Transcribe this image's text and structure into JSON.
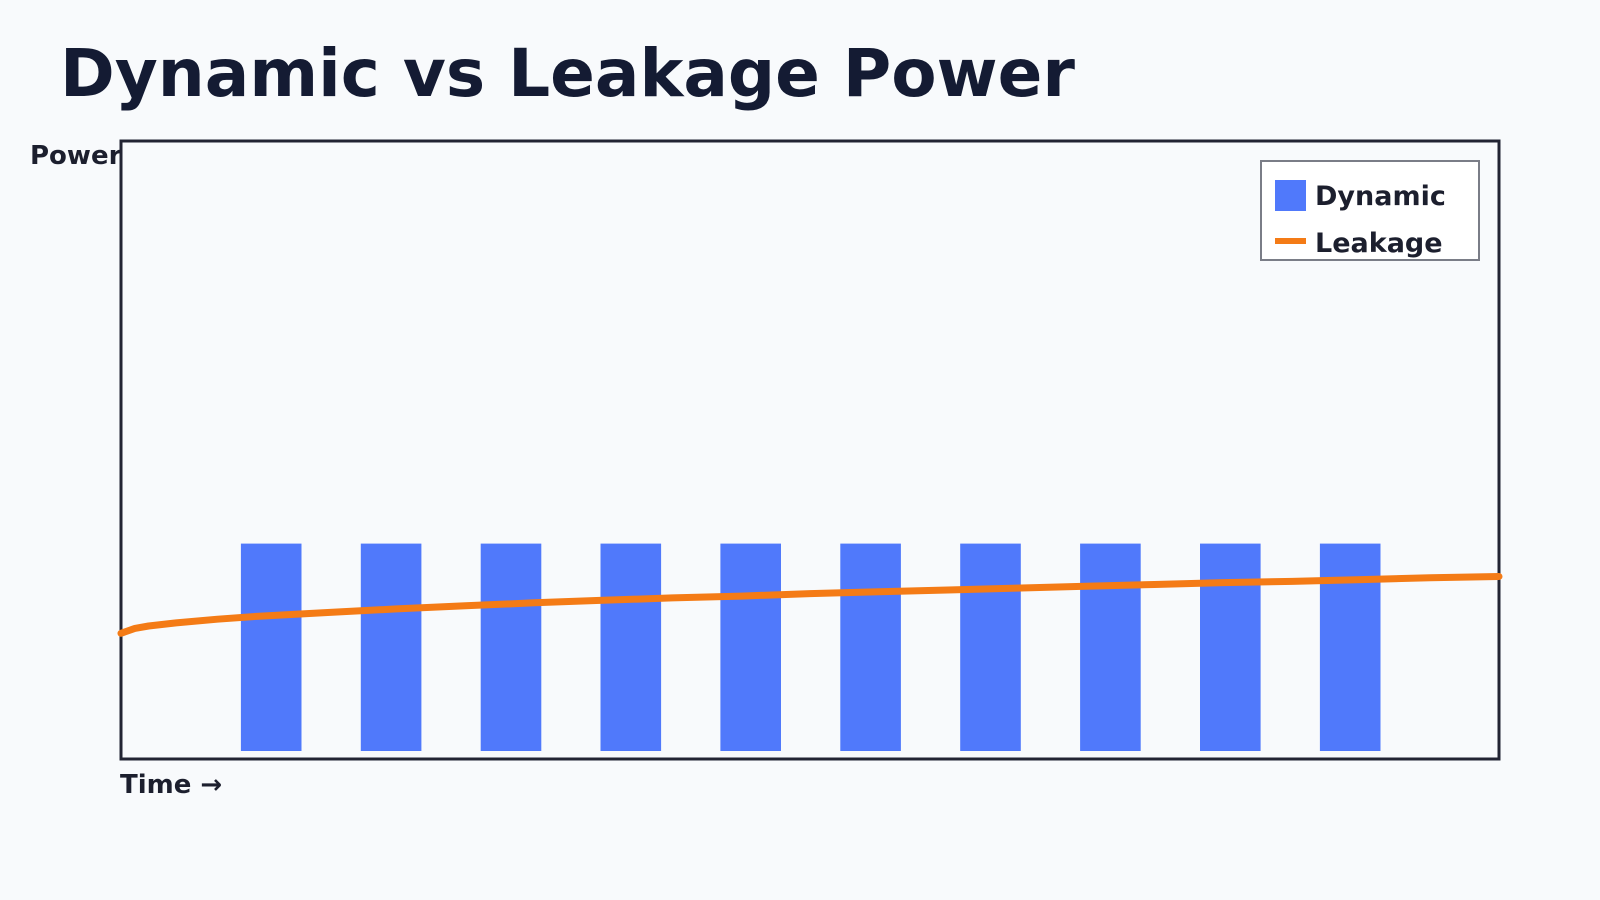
{
  "chart_data": {
    "type": "bar",
    "title": "Dynamic vs Leakage Power",
    "ylabel": "Power",
    "xlabel": "Time →",
    "grid": false,
    "legend_position": "top-right",
    "xlim": [
      0,
      100
    ],
    "ylim": [
      0,
      100
    ],
    "series": [
      {
        "name": "Dynamic",
        "type": "bar",
        "color": "#5079fb",
        "bar_width": 4.4,
        "x": [
          10.9,
          19.6,
          28.3,
          37.0,
          45.7,
          54.4,
          63.1,
          71.8,
          80.5,
          89.2
        ],
        "values": [
          34,
          34,
          34,
          34,
          34,
          34,
          34,
          34,
          34,
          34
        ]
      },
      {
        "name": "Leakage",
        "type": "line",
        "color": "#f47b16",
        "x": [
          0,
          1,
          2,
          4,
          7,
          10,
          15,
          20,
          25,
          30,
          35,
          40,
          45,
          50,
          55,
          60,
          65,
          70,
          75,
          80,
          85,
          90,
          95,
          100
        ],
        "values": [
          19.3,
          20.1,
          20.5,
          21.0,
          21.6,
          22.1,
          22.7,
          23.3,
          23.8,
          24.3,
          24.7,
          25.1,
          25.4,
          25.8,
          26.1,
          26.4,
          26.7,
          27.0,
          27.3,
          27.6,
          27.8,
          28.1,
          28.4,
          28.6
        ]
      }
    ]
  }
}
